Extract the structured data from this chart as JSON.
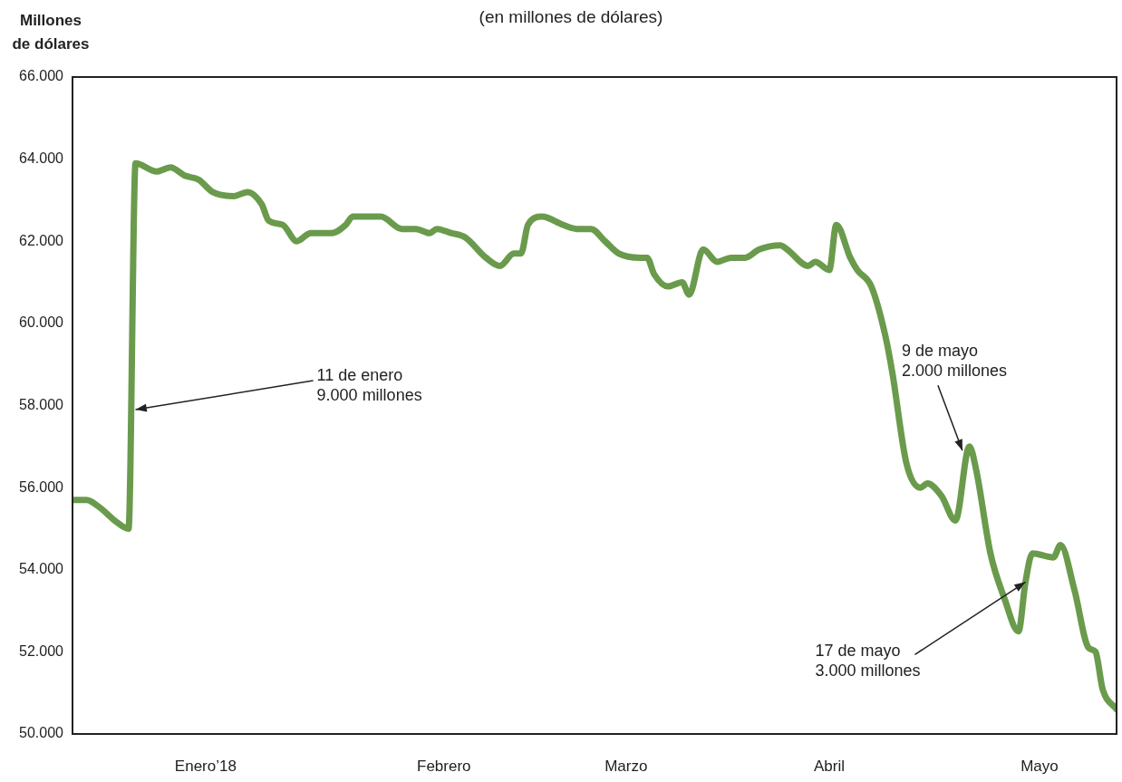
{
  "chart_data": {
    "type": "line",
    "subtitle": "(en millones de dólares)",
    "ylabel": "Millones de dólares",
    "x": [
      "2018-01-02",
      "2018-01-04",
      "2018-01-06",
      "2018-01-08",
      "2018-01-10",
      "2018-01-11",
      "2018-01-14",
      "2018-01-16",
      "2018-01-18",
      "2018-01-20",
      "2018-01-22",
      "2018-01-25",
      "2018-01-27",
      "2018-01-29",
      "2018-01-30",
      "2018-02-01",
      "2018-02-03",
      "2018-02-05",
      "2018-02-08",
      "2018-02-10",
      "2018-02-11",
      "2018-02-13",
      "2018-02-15",
      "2018-02-18",
      "2018-02-20",
      "2018-02-22",
      "2018-02-23",
      "2018-02-25",
      "2018-02-27",
      "2018-03-02",
      "2018-03-04",
      "2018-03-06",
      "2018-03-07",
      "2018-03-08",
      "2018-03-10",
      "2018-03-13",
      "2018-03-15",
      "2018-03-17",
      "2018-03-19",
      "2018-03-21",
      "2018-03-24",
      "2018-03-25",
      "2018-03-26",
      "2018-03-28",
      "2018-03-30",
      "2018-03-31",
      "2018-04-02",
      "2018-04-04",
      "2018-04-06",
      "2018-04-08",
      "2018-04-10",
      "2018-04-13",
      "2018-04-14",
      "2018-04-17",
      "2018-04-18",
      "2018-04-20",
      "2018-04-21",
      "2018-04-23",
      "2018-04-24",
      "2018-04-26",
      "2018-04-28",
      "2018-04-29",
      "2018-05-01",
      "2018-05-03",
      "2018-05-04",
      "2018-05-06",
      "2018-05-08",
      "2018-05-10",
      "2018-05-11",
      "2018-05-13",
      "2018-05-15",
      "2018-05-17",
      "2018-05-18",
      "2018-05-19",
      "2018-05-22",
      "2018-05-23",
      "2018-05-25",
      "2018-05-27",
      "2018-05-28",
      "2018-05-29",
      "2018-05-31"
    ],
    "series": [
      {
        "color": "#6a9b4c",
        "values": [
          55700,
          55700,
          55500,
          55200,
          55000,
          63900,
          63700,
          63800,
          63600,
          63500,
          63200,
          63100,
          63200,
          62900,
          62500,
          62400,
          62000,
          62200,
          62200,
          62400,
          62600,
          62600,
          62600,
          62300,
          62300,
          62200,
          62300,
          62200,
          62100,
          61600,
          61400,
          61700,
          61700,
          62400,
          62600,
          62400,
          62300,
          62300,
          62000,
          61700,
          61600,
          61600,
          61200,
          60900,
          61000,
          60700,
          61800,
          61500,
          61600,
          61600,
          61800,
          61900,
          61800,
          61400,
          61500,
          61300,
          62400,
          61600,
          61300,
          60900,
          59700,
          58800,
          56600,
          56000,
          56100,
          55800,
          55200,
          57000,
          56400,
          54400,
          53300,
          52500,
          53700,
          54400,
          54300,
          54600,
          53500,
          52100,
          52000,
          51100,
          50600
        ]
      }
    ],
    "annotations": [
      {
        "text": "11 de enero\n9.000 millones",
        "x": "2018-01-11",
        "y": 57900
      },
      {
        "text": "9 de mayo\n2.000 millones",
        "x": "2018-05-09",
        "y": 56900
      },
      {
        "text": "17 de mayo\n3.000 millones",
        "x": "2018-05-18",
        "y": 53700
      }
    ],
    "xlim": [
      "2018-01-02",
      "2018-05-31"
    ],
    "xticks": [
      {
        "value": "2018-01-21",
        "label": "Enero’18"
      },
      {
        "value": "2018-02-24",
        "label": "Febrero"
      },
      {
        "value": "2018-03-22",
        "label": "Marzo"
      },
      {
        "value": "2018-04-20",
        "label": "Abril"
      },
      {
        "value": "2018-05-20",
        "label": "Mayo"
      }
    ],
    "ylim": [
      50000,
      66000
    ],
    "yticks": [
      {
        "value": 50000,
        "label": "50.000"
      },
      {
        "value": 52000,
        "label": "52.000"
      },
      {
        "value": 54000,
        "label": "54.000"
      },
      {
        "value": 56000,
        "label": "56.000"
      },
      {
        "value": 58000,
        "label": "58.000"
      },
      {
        "value": 60000,
        "label": "60.000"
      },
      {
        "value": 62000,
        "label": "62.000"
      },
      {
        "value": 64000,
        "label": "64.000"
      },
      {
        "value": 66000,
        "label": "66.000"
      }
    ],
    "grid": false,
    "marker": "none",
    "line_style": "solid"
  }
}
